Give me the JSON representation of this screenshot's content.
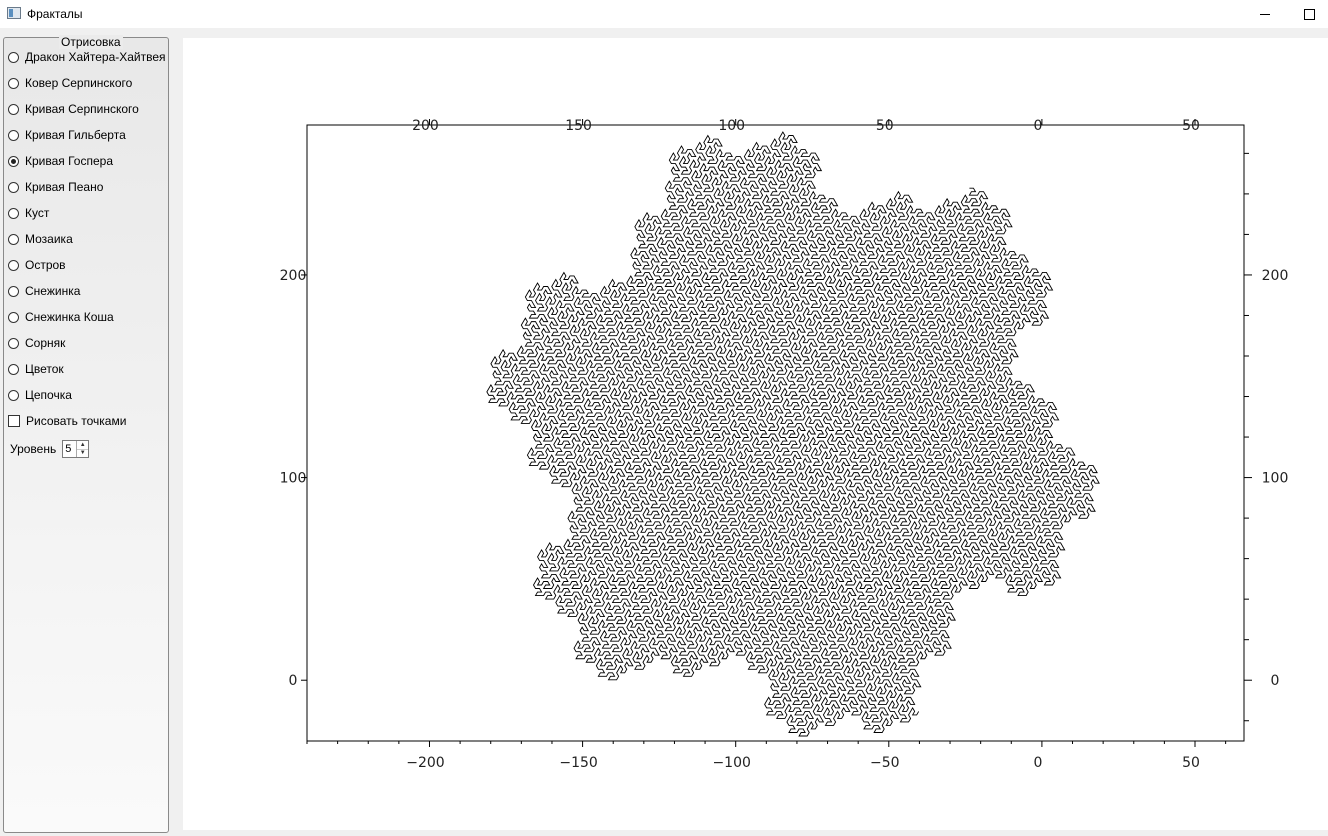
{
  "window": {
    "title": "Фракталы"
  },
  "panel": {
    "title": "Отрисовка",
    "options": [
      {
        "label": "Дракон Хайтера-Хайтвея",
        "checked": false
      },
      {
        "label": "Ковер Серпинского",
        "checked": false
      },
      {
        "label": "Кривая Серпинского",
        "checked": false
      },
      {
        "label": "Кривая Гильберта",
        "checked": false
      },
      {
        "label": "Кривая Госпера",
        "checked": true
      },
      {
        "label": "Кривая Пеано",
        "checked": false
      },
      {
        "label": "Куст",
        "checked": false
      },
      {
        "label": "Мозаика",
        "checked": false
      },
      {
        "label": "Остров",
        "checked": false
      },
      {
        "label": "Снежинка",
        "checked": false
      },
      {
        "label": "Снежинка Коша",
        "checked": false
      },
      {
        "label": "Сорняк",
        "checked": false
      },
      {
        "label": "Цветок",
        "checked": false
      },
      {
        "label": "Цепочка",
        "checked": false
      }
    ],
    "dots_label": "Рисовать точками",
    "dots_checked": false,
    "level_label": "Уровень",
    "level_value": "5"
  },
  "plot": {
    "curve": "gosper",
    "level": 5,
    "x_ticks": [
      "−200",
      "−150",
      "−100",
      "−50",
      "0",
      "50"
    ],
    "x_tick_values": [
      -200,
      -150,
      -100,
      -50,
      0,
      50
    ],
    "x_top_ticks": [
      "200",
      "150",
      "100",
      "50",
      "0",
      "50"
    ],
    "y_ticks": [
      "200",
      "100",
      "0"
    ],
    "y_tick_values": [
      200,
      100,
      0
    ],
    "xlim": [
      -240,
      66
    ],
    "ylim": [
      -30,
      274
    ],
    "line_color": "#000000"
  }
}
